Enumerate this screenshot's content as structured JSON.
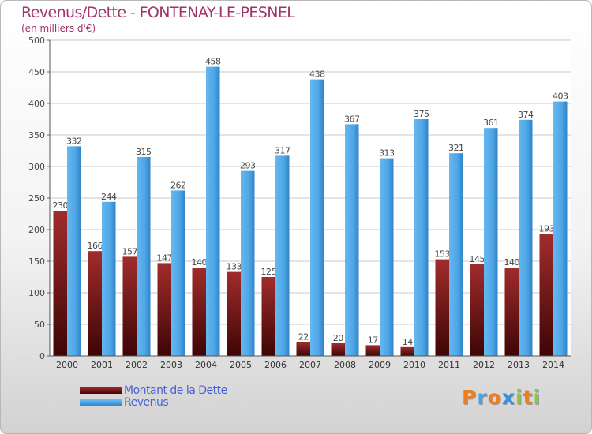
{
  "chart_data": {
    "type": "bar",
    "title": "Revenus/Dette - FONTENAY-LE-PESNEL",
    "subtitle": "(en milliers d'€)",
    "xlabel": "",
    "ylabel": "",
    "ylim": [
      0,
      500
    ],
    "yticks": [
      0,
      50,
      100,
      150,
      200,
      250,
      300,
      350,
      400,
      450,
      500
    ],
    "grid": true,
    "legend_position": "bottom-left",
    "categories": [
      "2000",
      "2001",
      "2002",
      "2003",
      "2004",
      "2005",
      "2006",
      "2007",
      "2008",
      "2009",
      "2010",
      "2011",
      "2012",
      "2013",
      "2014"
    ],
    "series": [
      {
        "name": "Montant de la Dette",
        "color": "#7a1a1a",
        "values": [
          230,
          166,
          157,
          147,
          140,
          133,
          125,
          22,
          20,
          17,
          14,
          153,
          145,
          140,
          193
        ]
      },
      {
        "name": "Revenus",
        "color": "#4ea6e6",
        "values": [
          332,
          244,
          315,
          262,
          458,
          293,
          317,
          438,
          367,
          313,
          375,
          321,
          361,
          374,
          403
        ]
      }
    ]
  },
  "logo": {
    "text": "Proxiti",
    "colors": [
      "#f07c1c",
      "#4aa3df",
      "#f07c1c",
      "#3f8ed8",
      "#8cc63f",
      "#f07c1c",
      "#8cc63f"
    ]
  }
}
